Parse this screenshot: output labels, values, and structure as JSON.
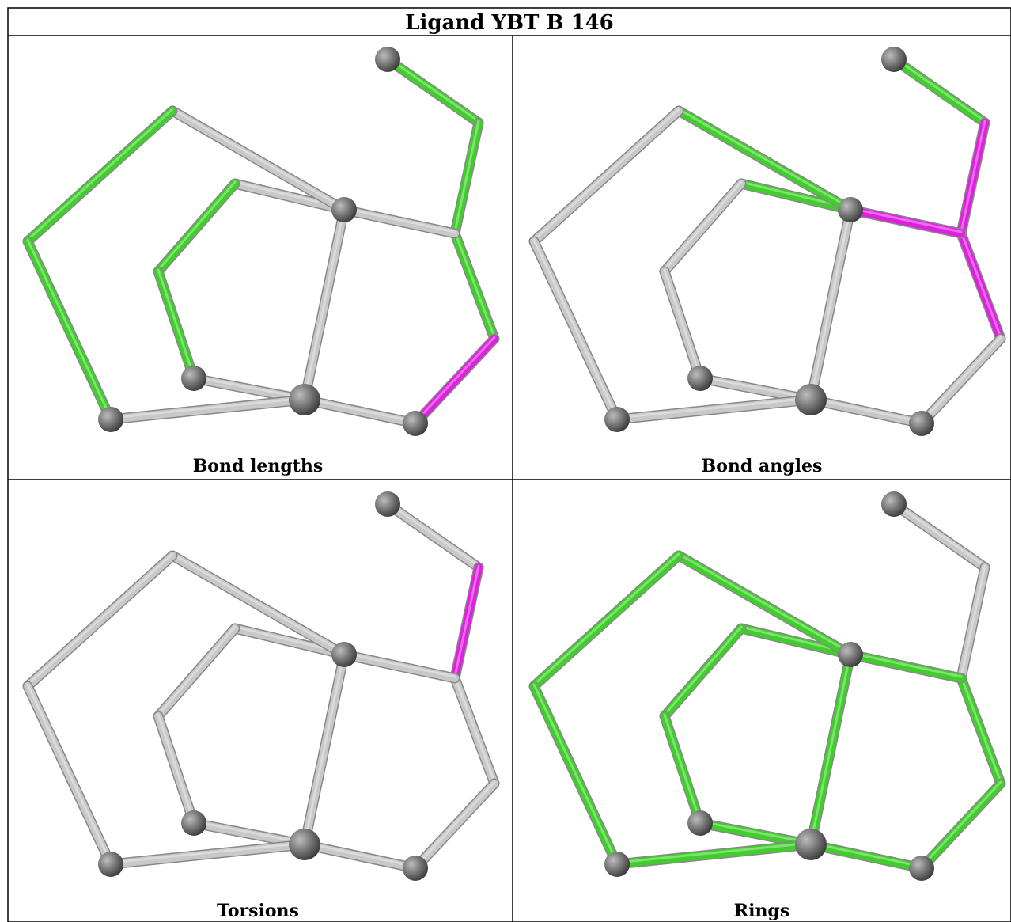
{
  "title": "Ligand YBT B 146",
  "panels": [
    {
      "caption": "Bond lengths"
    },
    {
      "caption": "Bond angles"
    },
    {
      "caption": "Torsions"
    },
    {
      "caption": "Rings"
    }
  ]
}
